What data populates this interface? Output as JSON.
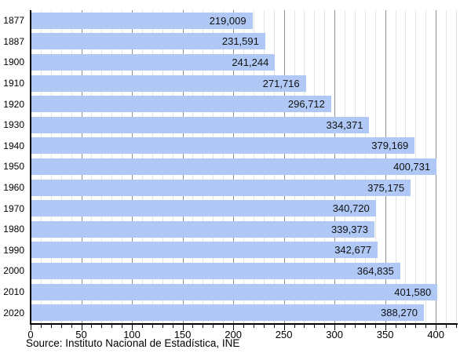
{
  "chart_data": {
    "type": "bar",
    "orientation": "horizontal",
    "title": "",
    "categories": [
      "1877",
      "1887",
      "1900",
      "1910",
      "1920",
      "1930",
      "1940",
      "1950",
      "1960",
      "1970",
      "1980",
      "1990",
      "2000",
      "2010",
      "2020"
    ],
    "values": [
      219009,
      231591,
      241244,
      271716,
      296712,
      334371,
      379169,
      400731,
      375175,
      340720,
      339373,
      342677,
      364835,
      401580,
      388270
    ],
    "value_labels": [
      "219,009",
      "231,591",
      "241,244",
      "271,716",
      "296,712",
      "334,371",
      "379,169",
      "400,731",
      "375,175",
      "340,720",
      "339,373",
      "342,677",
      "364,835",
      "401,580",
      "388,270"
    ],
    "axis_unit_divisor": 1000,
    "xlim": [
      0,
      420
    ],
    "x_ticks": [
      0,
      50,
      100,
      150,
      200,
      250,
      300,
      350,
      400
    ],
    "minor_tick_step": 10,
    "grid": true,
    "legend_position": "none",
    "source": "Source: Instituto Nacional de Estadística, INE",
    "colors": {
      "bar": "#afc8f5",
      "major_grid": "#8f8f8f",
      "minor_grid": "#e4e4e4",
      "axis": "#000000",
      "value_text": "#111111"
    }
  }
}
